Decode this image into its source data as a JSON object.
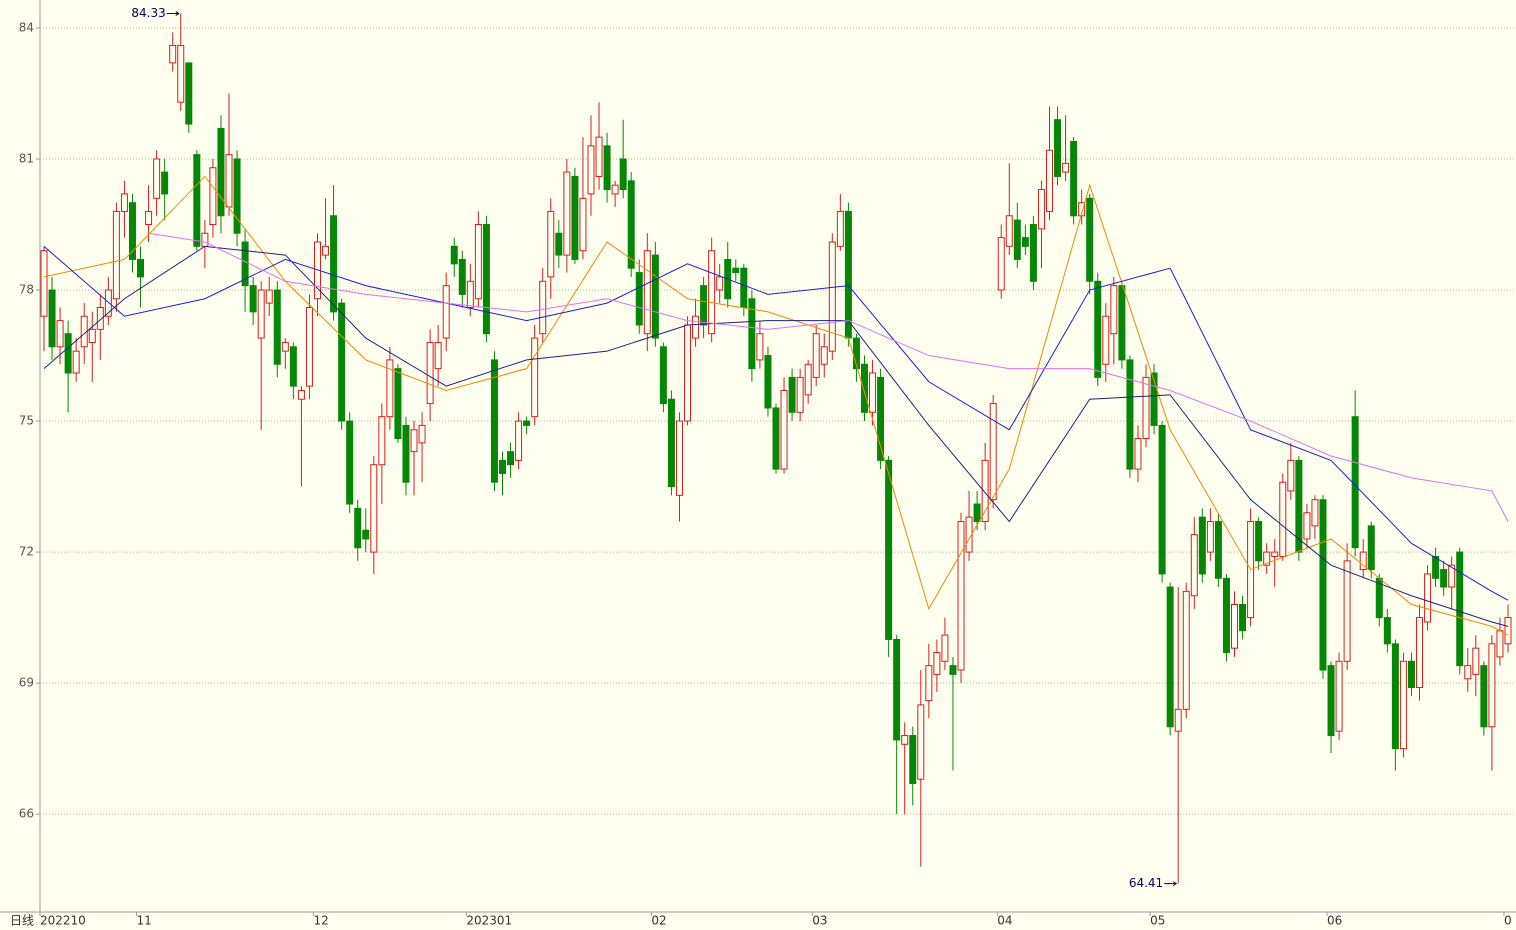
{
  "chart_data": {
    "type": "candlestick",
    "period_label": "日线",
    "max_label": "84.33",
    "min_label": "64.41",
    "up_color": "#d81e1e",
    "down_color": "#078707",
    "ylim": [
      63.76,
      84.64
    ],
    "yticks": [
      66,
      69,
      72,
      75,
      78,
      81,
      84
    ],
    "grid": true,
    "categories": [
      "202210",
      null,
      null,
      null,
      null,
      null,
      null,
      null,
      null,
      null,
      null,
      null,
      "11",
      null,
      null,
      null,
      null,
      null,
      null,
      null,
      null,
      null,
      null,
      null,
      null,
      null,
      null,
      null,
      null,
      null,
      null,
      null,
      null,
      null,
      "12",
      null,
      null,
      null,
      null,
      null,
      null,
      null,
      null,
      null,
      null,
      null,
      null,
      null,
      null,
      null,
      null,
      null,
      null,
      "202301",
      null,
      null,
      null,
      null,
      null,
      null,
      null,
      null,
      null,
      null,
      null,
      null,
      null,
      null,
      null,
      null,
      null,
      null,
      null,
      null,
      null,
      null,
      "02",
      null,
      null,
      null,
      null,
      null,
      null,
      null,
      null,
      null,
      null,
      null,
      null,
      null,
      null,
      null,
      null,
      null,
      null,
      null,
      "03",
      null,
      null,
      null,
      null,
      null,
      null,
      null,
      null,
      null,
      null,
      null,
      null,
      null,
      null,
      null,
      null,
      null,
      null,
      null,
      null,
      null,
      null,
      "04",
      null,
      null,
      null,
      null,
      null,
      null,
      null,
      null,
      null,
      null,
      null,
      null,
      null,
      null,
      null,
      null,
      null,
      null,
      "05",
      null,
      null,
      null,
      null,
      null,
      null,
      null,
      null,
      null,
      null,
      null,
      null,
      null,
      null,
      null,
      null,
      null,
      null,
      null,
      null,
      null,
      "06",
      null,
      null,
      null,
      null,
      null,
      null,
      null,
      null,
      null,
      null,
      null,
      null,
      null,
      null,
      null,
      null,
      null,
      null,
      null,
      null,
      null,
      "0"
    ],
    "candles": [
      [
        77.4,
        79.0,
        76.6,
        78.9
      ],
      [
        78.0,
        78.3,
        76.4,
        76.7
      ],
      [
        76.7,
        77.6,
        76.3,
        77.3
      ],
      [
        77.0,
        77.3,
        75.2,
        76.1
      ],
      [
        76.1,
        76.9,
        75.9,
        76.6
      ],
      [
        76.7,
        77.7,
        76.3,
        77.4
      ],
      [
        76.8,
        77.5,
        75.9,
        77.1
      ],
      [
        77.1,
        77.9,
        76.4,
        77.6
      ],
      [
        77.4,
        78.3,
        77.2,
        78.0
      ],
      [
        77.8,
        80.0,
        77.5,
        79.8
      ],
      [
        79.8,
        80.5,
        79.2,
        80.2
      ],
      [
        80.0,
        80.2,
        78.4,
        78.7
      ],
      [
        78.7,
        79.0,
        77.6,
        78.3
      ],
      [
        79.5,
        80.4,
        79.1,
        79.8
      ],
      [
        80.1,
        81.2,
        79.7,
        81.0
      ],
      [
        80.7,
        81.0,
        79.6,
        80.2
      ],
      [
        83.2,
        83.9,
        83.0,
        83.6
      ],
      [
        82.3,
        84.33,
        82.1,
        83.6
      ],
      [
        83.2,
        83.2,
        81.6,
        81.8
      ],
      [
        81.1,
        81.2,
        78.9,
        79.0
      ],
      [
        79.0,
        79.6,
        78.5,
        79.3
      ],
      [
        79.5,
        81.0,
        79.2,
        80.8
      ],
      [
        81.7,
        82.0,
        79.3,
        79.7
      ],
      [
        79.9,
        82.5,
        79.7,
        81.1
      ],
      [
        81.0,
        81.2,
        79.0,
        79.3
      ],
      [
        79.1,
        79.4,
        77.5,
        78.1
      ],
      [
        78.1,
        78.3,
        77.2,
        77.5
      ],
      [
        76.9,
        78.2,
        74.8,
        78.0
      ],
      [
        77.7,
        78.3,
        77.4,
        78.0
      ],
      [
        78.0,
        78.2,
        76.0,
        76.3
      ],
      [
        76.6,
        76.9,
        76.2,
        76.8
      ],
      [
        76.7,
        76.8,
        75.5,
        75.8
      ],
      [
        75.5,
        75.8,
        73.5,
        75.7
      ],
      [
        75.8,
        77.9,
        75.5,
        77.6
      ],
      [
        77.8,
        79.3,
        77.4,
        79.1
      ],
      [
        78.8,
        80.1,
        78.7,
        79.0
      ],
      [
        79.7,
        80.4,
        77.3,
        77.5
      ],
      [
        77.7,
        77.8,
        74.8,
        75.0
      ],
      [
        75.0,
        75.2,
        72.9,
        73.1
      ],
      [
        73.0,
        73.2,
        71.8,
        72.1
      ],
      [
        72.5,
        73.0,
        72.0,
        72.3
      ],
      [
        72.0,
        74.2,
        71.5,
        74.0
      ],
      [
        74.0,
        75.4,
        73.1,
        75.1
      ],
      [
        75.1,
        76.7,
        74.8,
        76.4
      ],
      [
        76.2,
        76.3,
        74.5,
        74.6
      ],
      [
        74.9,
        75.1,
        73.3,
        73.6
      ],
      [
        74.3,
        75.0,
        73.3,
        74.8
      ],
      [
        74.5,
        75.2,
        73.6,
        74.9
      ],
      [
        75.4,
        77.1,
        75.0,
        76.8
      ],
      [
        76.2,
        77.2,
        75.8,
        76.8
      ],
      [
        76.9,
        78.4,
        76.6,
        78.1
      ],
      [
        79.0,
        79.2,
        78.3,
        78.6
      ],
      [
        78.7,
        78.9,
        77.6,
        77.9
      ],
      [
        77.6,
        78.6,
        77.4,
        78.2
      ],
      [
        77.8,
        79.8,
        77.6,
        79.5
      ],
      [
        79.5,
        79.7,
        76.8,
        77.0
      ],
      [
        76.4,
        76.6,
        73.4,
        73.6
      ],
      [
        74.1,
        74.3,
        73.3,
        73.8
      ],
      [
        74.3,
        74.5,
        73.7,
        74.0
      ],
      [
        74.1,
        75.2,
        73.9,
        75.0
      ],
      [
        75.0,
        75.1,
        74.7,
        74.9
      ],
      [
        75.1,
        77.2,
        74.9,
        76.9
      ],
      [
        77.0,
        78.5,
        76.8,
        78.2
      ],
      [
        78.3,
        80.1,
        77.8,
        79.8
      ],
      [
        79.3,
        79.6,
        78.5,
        78.8
      ],
      [
        78.8,
        81.0,
        78.4,
        80.7
      ],
      [
        80.6,
        80.8,
        78.6,
        78.7
      ],
      [
        78.9,
        81.5,
        78.7,
        80.1
      ],
      [
        80.2,
        82.0,
        79.7,
        81.3
      ],
      [
        80.6,
        82.3,
        80.3,
        81.5
      ],
      [
        81.3,
        81.6,
        80.0,
        80.3
      ],
      [
        80.2,
        80.5,
        79.9,
        80.4
      ],
      [
        81.0,
        81.9,
        80.1,
        80.3
      ],
      [
        80.5,
        80.7,
        78.3,
        78.5
      ],
      [
        78.4,
        78.7,
        77.0,
        77.2
      ],
      [
        77.0,
        79.3,
        76.6,
        78.9
      ],
      [
        78.8,
        79.1,
        76.7,
        76.9
      ],
      [
        76.7,
        76.8,
        75.2,
        75.4
      ],
      [
        75.5,
        75.7,
        73.3,
        73.5
      ],
      [
        73.3,
        75.2,
        72.7,
        75.0
      ],
      [
        75.0,
        77.4,
        74.9,
        77.2
      ],
      [
        76.9,
        77.8,
        76.7,
        77.4
      ],
      [
        78.1,
        78.3,
        76.9,
        77.2
      ],
      [
        77.0,
        79.2,
        76.8,
        78.9
      ],
      [
        78.0,
        78.6,
        77.7,
        78.3
      ],
      [
        78.7,
        79.1,
        77.6,
        77.8
      ],
      [
        78.5,
        78.7,
        78.2,
        78.4
      ],
      [
        78.5,
        78.6,
        77.4,
        77.6
      ],
      [
        77.8,
        78.0,
        75.9,
        76.2
      ],
      [
        76.4,
        77.3,
        76.2,
        77.0
      ],
      [
        76.5,
        76.7,
        75.1,
        75.3
      ],
      [
        75.3,
        75.4,
        73.8,
        73.9
      ],
      [
        73.9,
        76.0,
        73.8,
        75.7
      ],
      [
        76.0,
        76.2,
        75.0,
        75.2
      ],
      [
        75.2,
        76.2,
        75.0,
        76.0
      ],
      [
        75.6,
        76.4,
        75.4,
        76.3
      ],
      [
        76.0,
        77.2,
        75.8,
        77.0
      ],
      [
        76.3,
        77.0,
        76.0,
        76.7
      ],
      [
        76.6,
        79.3,
        76.4,
        79.1
      ],
      [
        79.0,
        80.2,
        78.9,
        79.8
      ],
      [
        79.8,
        80.0,
        76.7,
        76.9
      ],
      [
        76.9,
        77.0,
        75.9,
        76.2
      ],
      [
        76.3,
        76.5,
        75.0,
        75.2
      ],
      [
        75.2,
        76.4,
        74.9,
        76.1
      ],
      [
        76.0,
        76.2,
        73.9,
        74.1
      ],
      [
        74.1,
        74.2,
        69.6,
        70.0
      ],
      [
        70.0,
        70.1,
        66.0,
        67.7
      ],
      [
        67.6,
        68.1,
        66.0,
        67.8
      ],
      [
        67.8,
        68.0,
        66.2,
        66.7
      ],
      [
        66.8,
        69.3,
        64.8,
        68.5
      ],
      [
        68.6,
        69.9,
        68.2,
        69.4
      ],
      [
        69.2,
        70.0,
        68.8,
        69.7
      ],
      [
        69.5,
        70.5,
        69.3,
        70.1
      ],
      [
        69.4,
        69.6,
        67.0,
        69.2
      ],
      [
        69.3,
        72.9,
        69.0,
        72.7
      ],
      [
        72.0,
        73.4,
        71.8,
        72.8
      ],
      [
        73.1,
        73.4,
        72.5,
        72.7
      ],
      [
        72.7,
        74.5,
        72.5,
        74.1
      ],
      [
        73.2,
        75.6,
        73.0,
        75.4
      ],
      [
        78.0,
        79.5,
        77.8,
        79.2
      ],
      [
        79.0,
        80.9,
        78.8,
        79.7
      ],
      [
        79.6,
        80.0,
        78.5,
        78.7
      ],
      [
        79.2,
        79.5,
        78.8,
        79.0
      ],
      [
        79.5,
        79.7,
        78.0,
        78.2
      ],
      [
        79.4,
        80.5,
        78.5,
        80.3
      ],
      [
        79.8,
        82.2,
        79.6,
        81.2
      ],
      [
        81.9,
        82.2,
        80.4,
        80.6
      ],
      [
        80.7,
        82.0,
        80.5,
        80.9
      ],
      [
        81.4,
        81.5,
        79.5,
        79.7
      ],
      [
        79.7,
        80.3,
        79.5,
        80.0
      ],
      [
        80.1,
        80.2,
        77.9,
        78.2
      ],
      [
        78.2,
        78.4,
        75.8,
        76.0
      ],
      [
        76.3,
        77.7,
        75.9,
        77.4
      ],
      [
        77.0,
        78.3,
        76.3,
        78.1
      ],
      [
        78.1,
        78.2,
        76.2,
        76.4
      ],
      [
        76.4,
        76.5,
        73.7,
        73.9
      ],
      [
        73.9,
        74.9,
        73.6,
        74.6
      ],
      [
        74.6,
        76.3,
        74.4,
        76.0
      ],
      [
        76.1,
        76.3,
        74.7,
        74.9
      ],
      [
        74.9,
        75.0,
        71.3,
        71.5
      ],
      [
        71.2,
        71.3,
        67.8,
        68.0
      ],
      [
        67.9,
        71.2,
        64.41,
        68.4
      ],
      [
        68.4,
        71.3,
        68.2,
        71.1
      ],
      [
        71.0,
        72.8,
        70.7,
        72.4
      ],
      [
        72.8,
        73.0,
        71.3,
        71.5
      ],
      [
        72.0,
        73.0,
        71.8,
        72.7
      ],
      [
        72.7,
        72.9,
        71.2,
        71.4
      ],
      [
        71.4,
        71.5,
        69.5,
        69.7
      ],
      [
        69.8,
        71.1,
        69.6,
        70.8
      ],
      [
        70.8,
        71.0,
        70.0,
        70.2
      ],
      [
        70.5,
        73.0,
        70.3,
        72.7
      ],
      [
        72.7,
        72.8,
        71.6,
        71.8
      ],
      [
        71.7,
        72.2,
        71.5,
        72.0
      ],
      [
        71.9,
        72.3,
        71.2,
        72.0
      ],
      [
        71.9,
        73.8,
        71.8,
        73.6
      ],
      [
        73.4,
        74.5,
        73.2,
        74.1
      ],
      [
        74.1,
        74.2,
        71.8,
        72.0
      ],
      [
        72.3,
        73.1,
        72.1,
        72.9
      ],
      [
        72.6,
        73.3,
        72.3,
        73.2
      ],
      [
        73.2,
        73.3,
        69.1,
        69.3
      ],
      [
        69.4,
        69.5,
        67.4,
        67.8
      ],
      [
        67.9,
        69.7,
        67.7,
        69.5
      ],
      [
        69.5,
        72.2,
        69.3,
        71.8
      ],
      [
        75.1,
        75.7,
        71.9,
        72.1
      ],
      [
        71.6,
        72.3,
        71.4,
        72.0
      ],
      [
        72.6,
        72.7,
        71.4,
        71.6
      ],
      [
        71.4,
        71.5,
        70.3,
        70.5
      ],
      [
        70.5,
        70.7,
        69.7,
        69.9
      ],
      [
        69.9,
        70.0,
        67.0,
        67.5
      ],
      [
        67.5,
        69.7,
        67.3,
        69.5
      ],
      [
        69.5,
        69.7,
        68.7,
        68.9
      ],
      [
        68.9,
        70.8,
        68.6,
        70.5
      ],
      [
        70.4,
        71.7,
        70.2,
        71.5
      ],
      [
        71.9,
        72.1,
        71.2,
        71.4
      ],
      [
        71.6,
        71.8,
        71.0,
        71.2
      ],
      [
        71.2,
        71.9,
        70.7,
        71.7
      ],
      [
        72.0,
        72.1,
        69.2,
        69.4
      ],
      [
        69.1,
        69.8,
        68.8,
        69.4
      ],
      [
        69.2,
        70.1,
        68.7,
        69.8
      ],
      [
        69.4,
        69.5,
        67.8,
        68.0
      ],
      [
        68.0,
        70.1,
        67.0,
        69.9
      ],
      [
        69.6,
        70.5,
        69.4,
        70.2
      ],
      [
        69.9,
        70.8,
        69.7,
        70.5
      ]
    ],
    "series": [
      {
        "color": "#f08a00",
        "x": [
          0,
          10,
          20,
          30,
          40,
          50,
          60,
          70,
          80,
          90,
          100,
          110,
          120,
          130,
          140,
          150,
          160,
          170,
          180,
          182
        ],
        "values": [
          78.3,
          78.7,
          80.6,
          78.2,
          76.4,
          75.7,
          76.2,
          79.1,
          77.8,
          77.5,
          76.9,
          70.7,
          73.9,
          80.4,
          74.8,
          71.6,
          72.3,
          70.8,
          70.3,
          70.1
        ]
      },
      {
        "color": "#1c1cd8",
        "x": [
          0,
          10,
          20,
          30,
          40,
          50,
          60,
          70,
          80,
          90,
          100,
          110,
          120,
          130,
          140,
          150,
          160,
          170,
          180,
          182
        ],
        "values": [
          79.0,
          77.4,
          77.8,
          78.7,
          78.1,
          77.7,
          77.3,
          77.7,
          78.6,
          77.9,
          78.1,
          75.9,
          74.8,
          78.0,
          78.5,
          74.8,
          74.1,
          72.2,
          71.1,
          70.9
        ]
      },
      {
        "color": "#202080",
        "x": [
          0,
          10,
          20,
          30,
          40,
          50,
          60,
          70,
          80,
          90,
          100,
          110,
          120,
          130,
          140,
          150,
          160,
          170,
          180,
          182
        ],
        "values": [
          76.2,
          77.8,
          79.0,
          78.8,
          76.9,
          75.8,
          76.4,
          76.6,
          77.2,
          77.3,
          77.3,
          74.9,
          72.7,
          75.5,
          75.6,
          73.2,
          71.7,
          71.0,
          70.4,
          70.3
        ]
      },
      {
        "color": "#e070f0",
        "x": [
          13,
          20,
          30,
          40,
          50,
          60,
          70,
          80,
          90,
          100,
          110,
          120,
          130,
          140,
          150,
          160,
          170,
          180,
          182
        ],
        "values": [
          79.3,
          79.1,
          78.2,
          77.9,
          77.7,
          77.5,
          77.8,
          77.3,
          77.1,
          77.3,
          76.5,
          76.2,
          76.2,
          75.7,
          75.0,
          74.2,
          73.7,
          73.4,
          72.7
        ]
      }
    ]
  }
}
